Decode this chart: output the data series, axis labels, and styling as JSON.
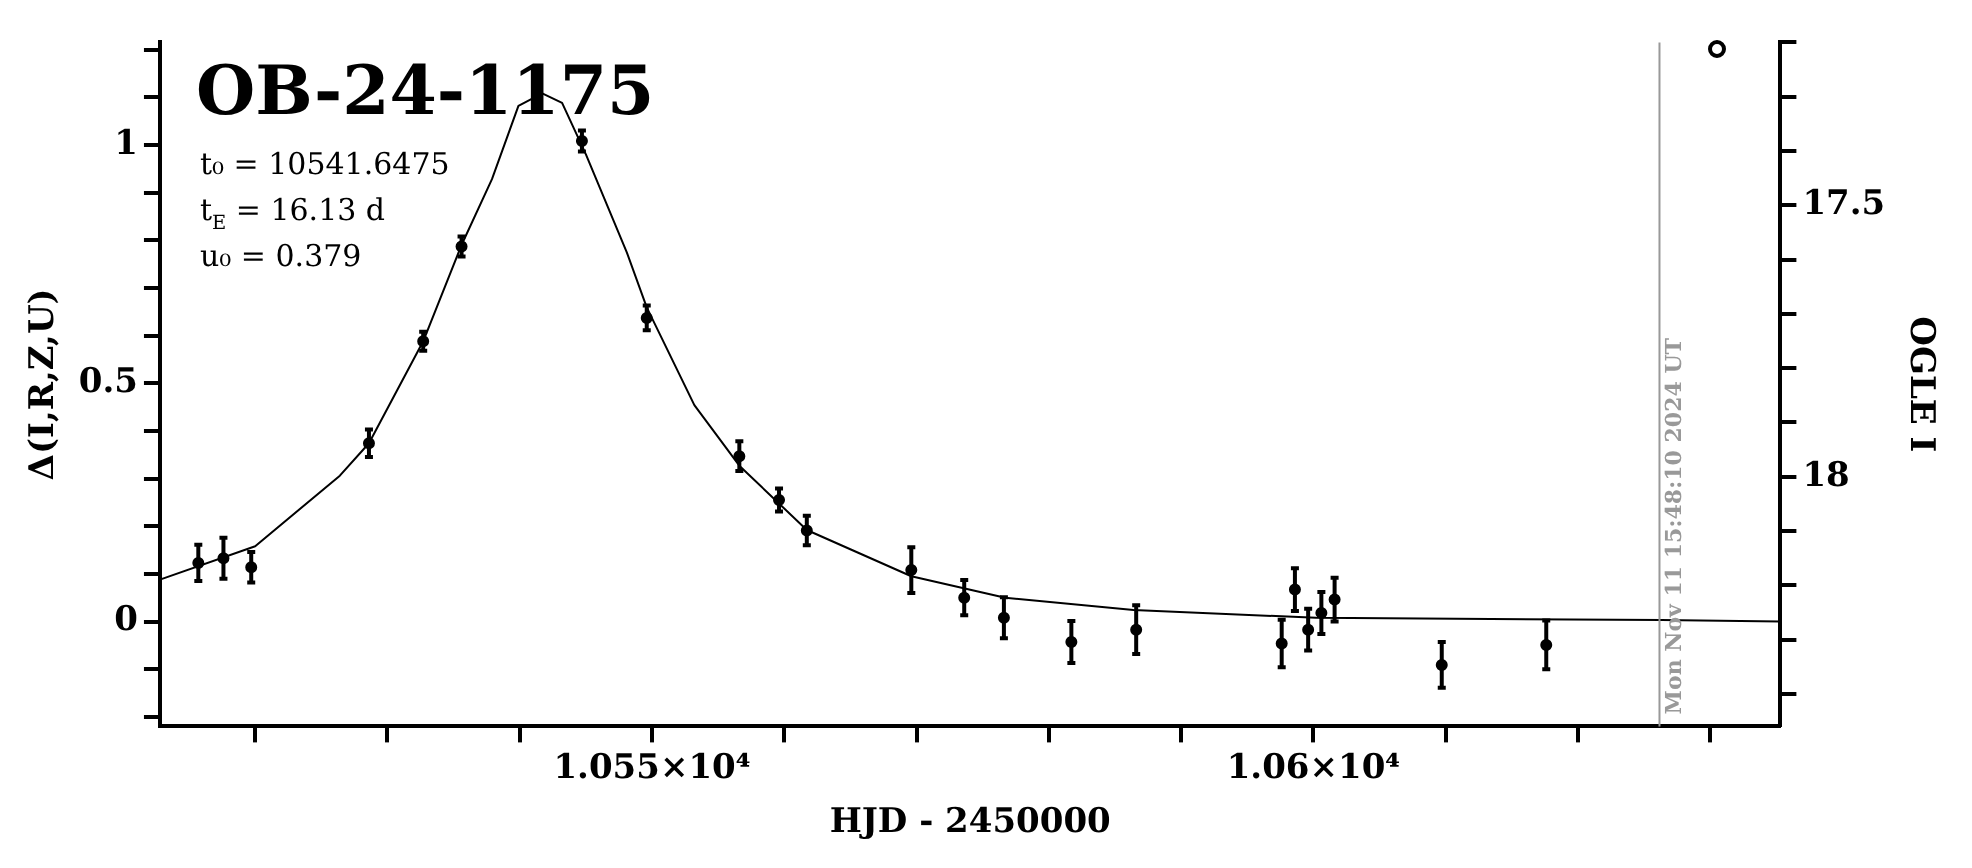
{
  "chart_data": {
    "type": "scatter",
    "title": "OB-24-1175",
    "xlabel": "HJD - 2450000",
    "ylabel": "Δ(I,R,Z,U)",
    "y2label": "OGLE I",
    "annotations": [
      "t₀ = 10541.6475",
      "t$_{E}$ = 16.13 d",
      "u₀ = 0.379",
      {
        "text": "Mon Nov 11 15:48:10 2024 UT",
        "x": 10626.16
      }
    ],
    "series": [
      {
        "type": "scatter",
        "color": "#000000",
        "marker": "circle",
        "x": [
          10515.7,
          10517.6,
          10519.7,
          10528.6,
          10532.7,
          10535.6,
          10544.7,
          10549.6,
          10556.6,
          10559.6,
          10561.7,
          10569.6,
          10573.6,
          10576.6,
          10581.7,
          10586.6,
          10597.6,
          10598.6,
          10599.6,
          10600.6,
          10601.6,
          10609.7,
          10617.6
        ],
        "values": [
          0.123,
          0.133,
          0.114,
          0.374,
          0.588,
          0.787,
          1.008,
          0.637,
          0.347,
          0.255,
          0.191,
          0.108,
          0.05,
          0.008,
          -0.043,
          -0.017,
          -0.046,
          0.067,
          -0.017,
          0.018,
          0.046,
          -0.091,
          -0.049
        ],
        "errors": [
          0.038,
          0.043,
          0.032,
          0.029,
          0.02,
          0.021,
          0.022,
          0.026,
          0.031,
          0.024,
          0.031,
          0.048,
          0.037,
          0.043,
          0.044,
          0.051,
          0.05,
          0.045,
          0.044,
          0.044,
          0.046,
          0.048,
          0.051
        ]
      },
      {
        "type": "line",
        "color": "#000000",
        "line_style": "solid",
        "x": [
          10512.8,
          10520,
          10526.4,
          10528.6,
          10532.7,
          10535.6,
          10537.9,
          10539.9,
          10541.7,
          10543.2,
          10545,
          10548.1,
          10549.6,
          10553.2,
          10556.6,
          10561.7,
          10569.6,
          10576.7,
          10586.4,
          10600.2,
          10626.3,
          10635.3
        ],
        "values": [
          0.088,
          0.158,
          0.306,
          0.374,
          0.588,
          0.79,
          0.928,
          1.082,
          1.108,
          1.088,
          0.98,
          0.774,
          0.659,
          0.454,
          0.327,
          0.192,
          0.095,
          0.05,
          0.024,
          0.008,
          0.003,
          0
        ]
      }
    ],
    "xlim": [
      10512.8,
      10635.3
    ],
    "xticks": [
      {
        "value": 10520,
        "label": null
      },
      {
        "value": 10530,
        "label": null
      },
      {
        "value": 10540,
        "label": null
      },
      {
        "value": 10550,
        "label": "1.055×10⁴"
      },
      {
        "value": 10560,
        "label": null
      },
      {
        "value": 10570,
        "label": null
      },
      {
        "value": 10580,
        "label": null
      },
      {
        "value": 10590,
        "label": null
      },
      {
        "value": 10600,
        "label": "1.06×10⁴"
      },
      {
        "value": 10610,
        "label": null
      },
      {
        "value": 10620,
        "label": null
      },
      {
        "value": 10630,
        "label": null
      }
    ],
    "ylim": [
      -0.22,
      1.215
    ],
    "yticks": [
      {
        "value": -0.2,
        "label": null
      },
      {
        "value": -0.1,
        "label": null
      },
      0,
      {
        "value": 0.1,
        "label": null
      },
      {
        "value": 0.2,
        "label": null
      },
      {
        "value": 0.3,
        "label": null
      },
      {
        "value": 0.4,
        "label": null
      },
      0.5,
      {
        "value": 0.6,
        "label": null
      },
      {
        "value": 0.7,
        "label": null
      },
      {
        "value": 0.8,
        "label": null
      },
      {
        "value": 0.9,
        "label": null
      },
      1,
      {
        "value": 1.1,
        "label": null
      },
      {
        "value": 1.2,
        "label": null
      }
    ],
    "y2lim": [
      18.46,
      17.2
    ],
    "y2ticks": [
      {
        "value": 17.2,
        "label": null
      },
      {
        "value": 17.3,
        "label": null
      },
      {
        "value": 17.4,
        "label": null
      },
      17.5,
      {
        "value": 17.6,
        "label": null
      },
      {
        "value": 17.7,
        "label": null
      },
      {
        "value": 17.8,
        "label": null
      },
      {
        "value": 17.9,
        "label": null
      },
      18,
      {
        "value": 18.1,
        "label": null
      },
      {
        "value": 18.2,
        "label": null
      },
      {
        "value": 18.3,
        "label": null
      },
      {
        "value": 18.4,
        "label": null
      }
    ],
    "ref_lines": [
      {
        "axis": "x",
        "value": 10626.16,
        "color": "#999999"
      }
    ],
    "grid": false
  }
}
